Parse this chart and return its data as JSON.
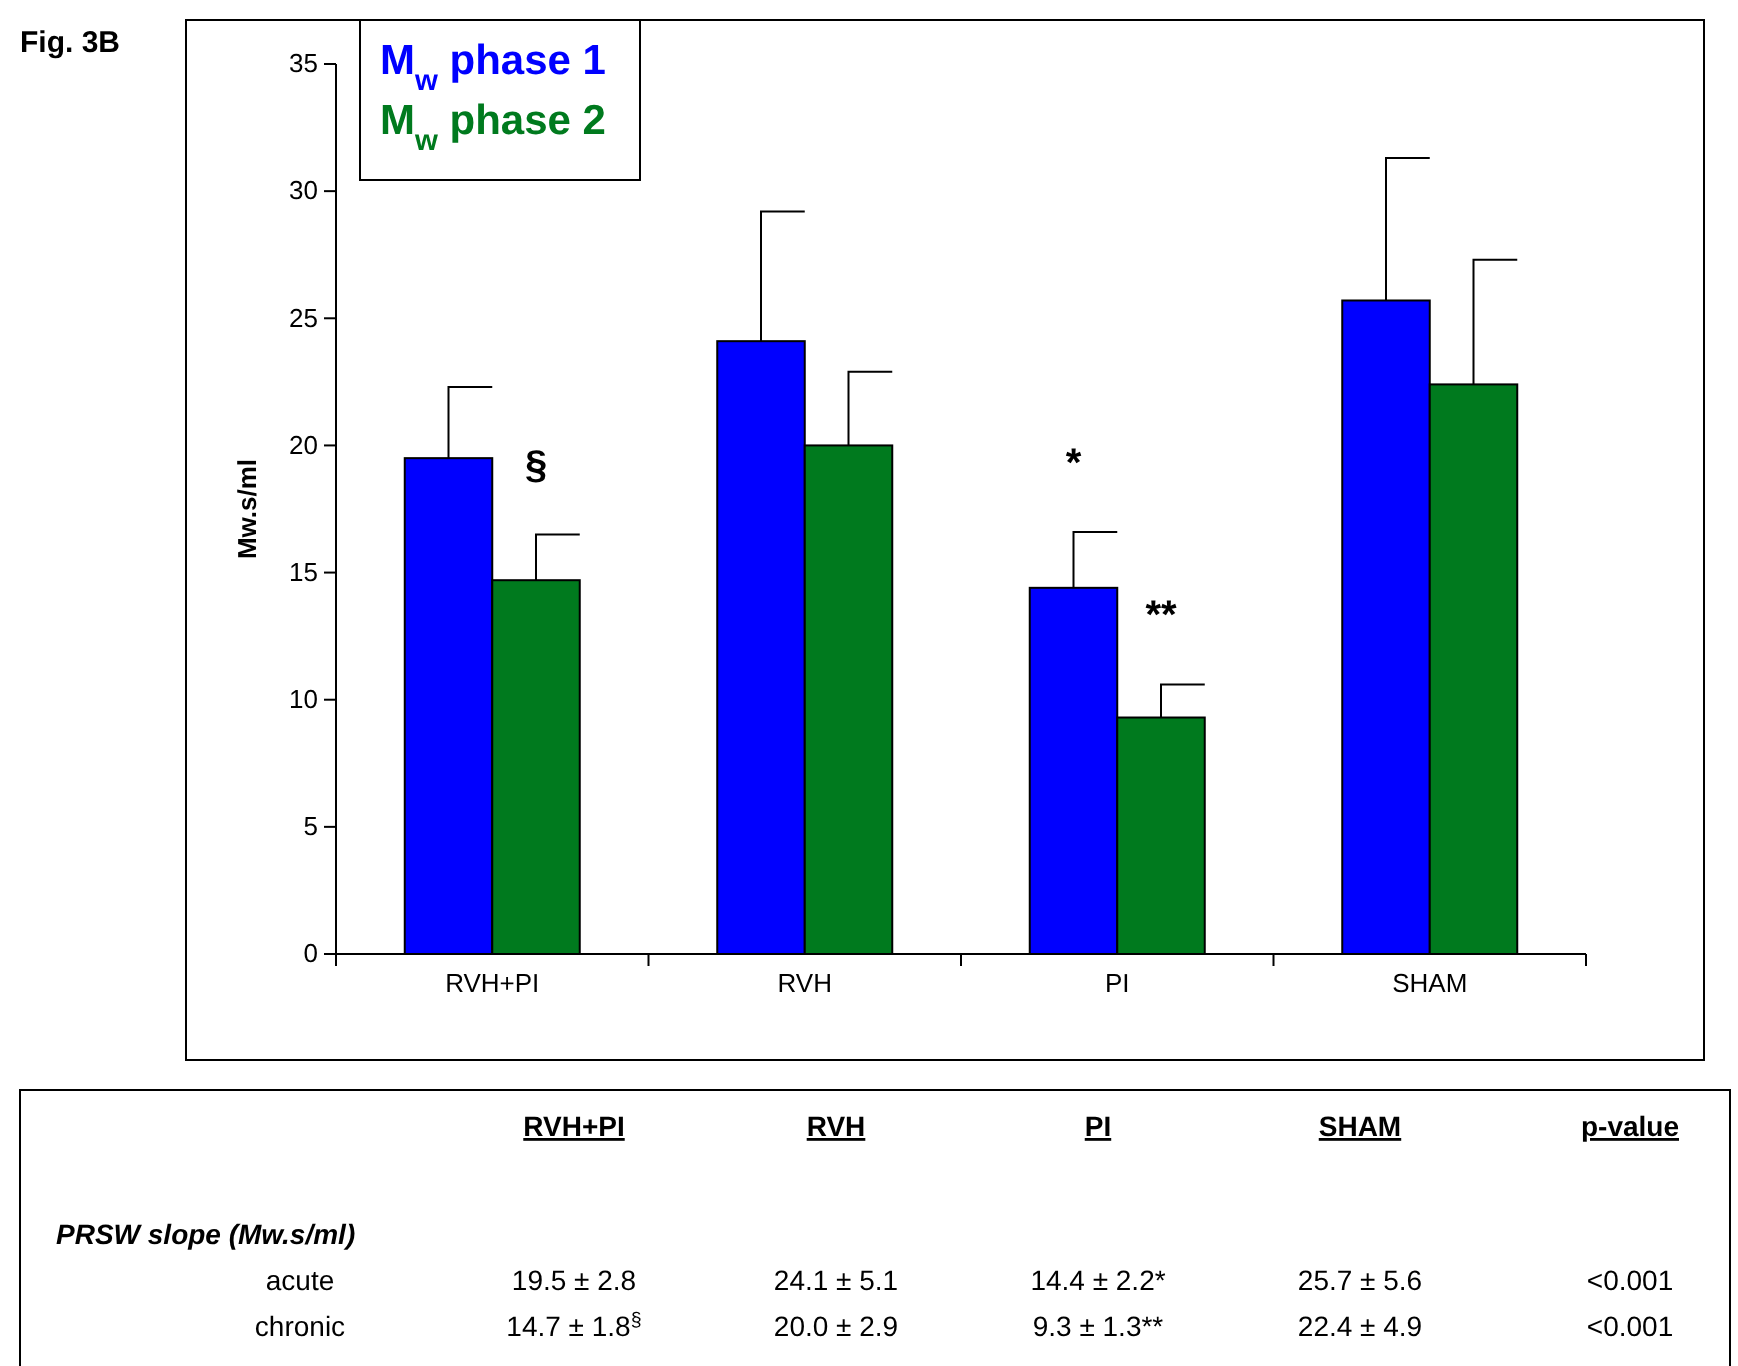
{
  "chart_data": {
    "type": "bar",
    "title": "Fig. 3B",
    "ylabel": "Mw.s/ml",
    "categories": [
      "RVH+PI",
      "RVH",
      "PI",
      "SHAM"
    ],
    "series": [
      {
        "name": "M$_{w}$ phase 1",
        "color": "#0000ff",
        "values": [
          19.5,
          24.1,
          14.4,
          25.7
        ],
        "errors": [
          [
            19.5,
            22.3
          ],
          [
            24.1,
            29.2
          ],
          [
            14.4,
            16.6
          ],
          [
            25.7,
            31.3
          ]
        ],
        "value_labels": [
          "19.5 ± 2.8",
          "24.1 ± 5.1",
          "14.4 ± 2.2*",
          "25.7 ± 5.6"
        ]
      },
      {
        "name": "M$_{w}$ phase 2",
        "color": "#007a1e",
        "values": [
          14.7,
          20.0,
          9.3,
          22.4
        ],
        "errors": [
          [
            14.7,
            16.5
          ],
          [
            20.0,
            22.9
          ],
          [
            9.3,
            10.6
          ],
          [
            22.4,
            27.3
          ]
        ],
        "value_labels": [
          "14.7 ± 1.8$^{§}$",
          "20.0 ± 2.9",
          "9.3 ± 1.3**",
          "22.4 ± 4.9"
        ]
      }
    ],
    "ylim": [
      0,
      35
    ],
    "yticks": [
      0,
      5,
      10,
      15,
      20,
      25,
      30,
      35
    ],
    "grid": false,
    "legend": "top left",
    "annotations": [
      {
        "text": "§",
        "x": "RVH+PI",
        "y": 16.5
      },
      {
        "text": "*",
        "x": "PI",
        "y": 16.6
      },
      {
        "text": "**",
        "x": "PI",
        "y": 10.6
      },
      "PRSW slope (Mw.s/ml)",
      "acute",
      "chronic",
      "p-value",
      "<0.001",
      "<0.001"
    ]
  }
}
